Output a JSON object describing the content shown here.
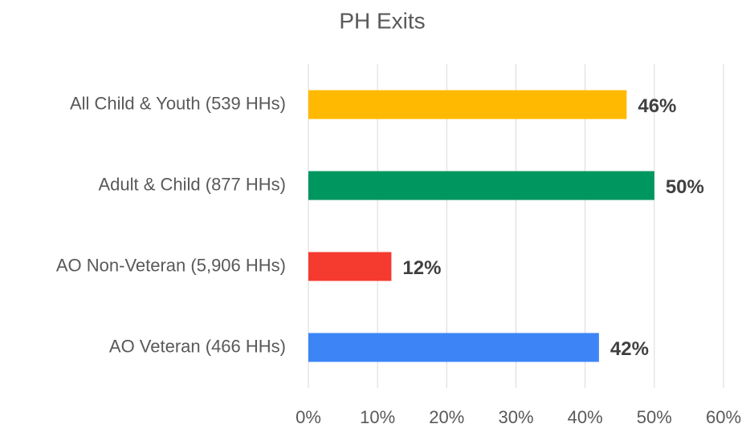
{
  "chart_data": {
    "type": "bar",
    "orientation": "horizontal",
    "title": "PH Exits",
    "categories": [
      "All Child & Youth (539 HHs)",
      "Adult & Child (877 HHs)",
      "AO Non-Veteran (5,906 HHs)",
      "AO Veteran (466 HHs)"
    ],
    "values": [
      46,
      50,
      12,
      42
    ],
    "value_labels": [
      "46%",
      "50%",
      "12%",
      "42%"
    ],
    "colors": [
      "#ffb900",
      "#00965f",
      "#f53b30",
      "#3d85f7"
    ],
    "xlim": [
      0,
      60
    ],
    "xticks": [
      {
        "value": 0,
        "label": "0%"
      },
      {
        "value": 10,
        "label": "10%"
      },
      {
        "value": 20,
        "label": "20%"
      },
      {
        "value": 30,
        "label": "30%"
      },
      {
        "value": 40,
        "label": "40%"
      },
      {
        "value": 50,
        "label": "50%"
      },
      {
        "value": 60,
        "label": "60%"
      }
    ],
    "grid": true
  }
}
